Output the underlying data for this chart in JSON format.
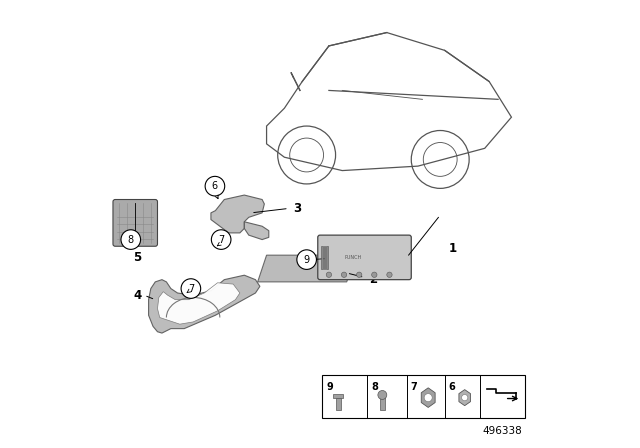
{
  "background_color": "#ffffff",
  "diagram_number": "496338",
  "line_color": "#555555",
  "line_width": 0.9
}
